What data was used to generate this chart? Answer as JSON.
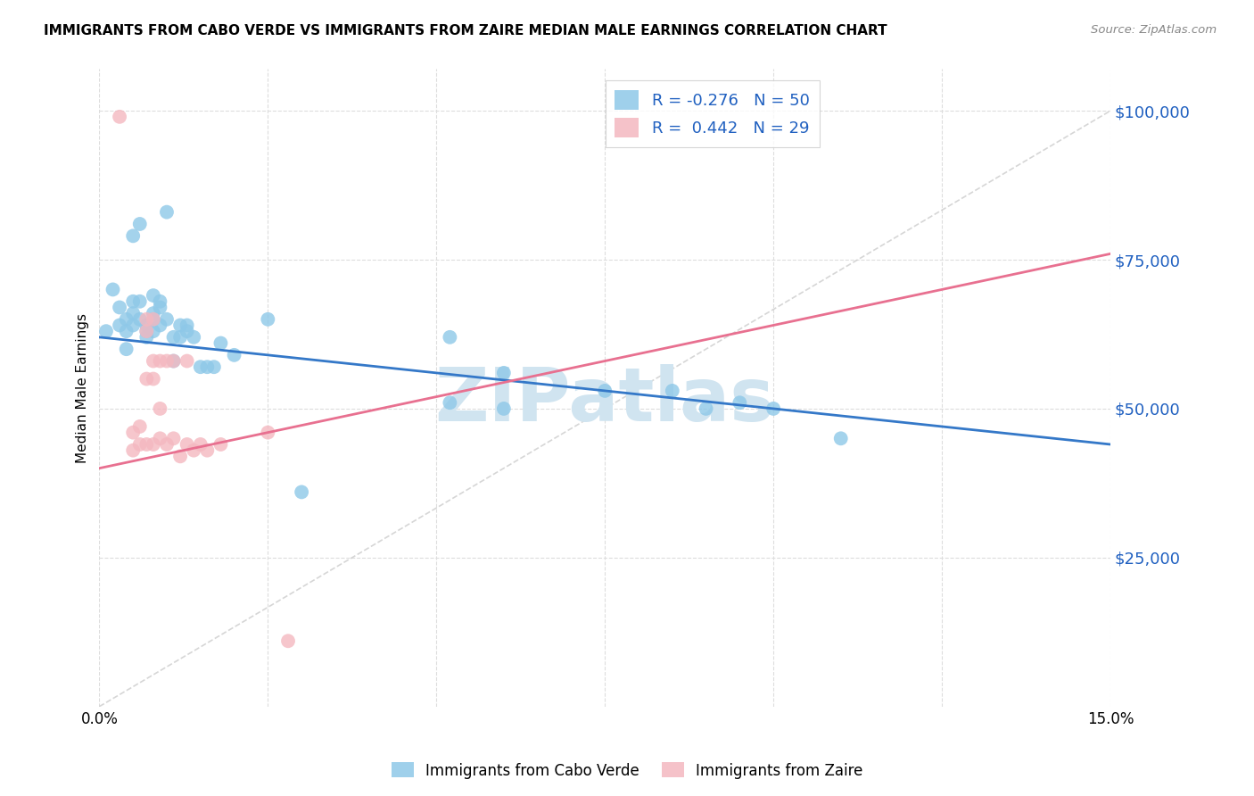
{
  "title": "IMMIGRANTS FROM CABO VERDE VS IMMIGRANTS FROM ZAIRE MEDIAN MALE EARNINGS CORRELATION CHART",
  "source": "Source: ZipAtlas.com",
  "ylabel": "Median Male Earnings",
  "y_ticks": [
    0,
    25000,
    50000,
    75000,
    100000
  ],
  "y_tick_labels": [
    "",
    "$25,000",
    "$50,000",
    "$75,000",
    "$100,000"
  ],
  "x_min": 0.0,
  "x_max": 0.15,
  "y_min": 0,
  "y_max": 107000,
  "cabo_verde_R": "-0.276",
  "cabo_verde_N": "50",
  "zaire_R": "0.442",
  "zaire_N": "29",
  "cabo_verde_color": "#8ec8e8",
  "zaire_color": "#f4b8c0",
  "cabo_verde_line_color": "#3478c8",
  "zaire_line_color": "#e87090",
  "diag_line_color": "#cccccc",
  "watermark_color": "#d0e4f0",
  "cabo_verde_points": [
    [
      0.001,
      63000
    ],
    [
      0.002,
      70000
    ],
    [
      0.003,
      67000
    ],
    [
      0.003,
      64000
    ],
    [
      0.004,
      65000
    ],
    [
      0.004,
      63000
    ],
    [
      0.004,
      60000
    ],
    [
      0.005,
      79000
    ],
    [
      0.005,
      68000
    ],
    [
      0.005,
      66000
    ],
    [
      0.005,
      64000
    ],
    [
      0.006,
      81000
    ],
    [
      0.006,
      68000
    ],
    [
      0.006,
      65000
    ],
    [
      0.007,
      64000
    ],
    [
      0.007,
      63000
    ],
    [
      0.007,
      62000
    ],
    [
      0.008,
      69000
    ],
    [
      0.008,
      66000
    ],
    [
      0.008,
      65000
    ],
    [
      0.008,
      63000
    ],
    [
      0.009,
      68000
    ],
    [
      0.009,
      67000
    ],
    [
      0.009,
      64000
    ],
    [
      0.01,
      83000
    ],
    [
      0.01,
      65000
    ],
    [
      0.011,
      62000
    ],
    [
      0.011,
      58000
    ],
    [
      0.012,
      64000
    ],
    [
      0.012,
      62000
    ],
    [
      0.013,
      64000
    ],
    [
      0.013,
      63000
    ],
    [
      0.014,
      62000
    ],
    [
      0.015,
      57000
    ],
    [
      0.016,
      57000
    ],
    [
      0.017,
      57000
    ],
    [
      0.018,
      61000
    ],
    [
      0.02,
      59000
    ],
    [
      0.025,
      65000
    ],
    [
      0.03,
      36000
    ],
    [
      0.052,
      62000
    ],
    [
      0.052,
      51000
    ],
    [
      0.06,
      56000
    ],
    [
      0.06,
      50000
    ],
    [
      0.075,
      53000
    ],
    [
      0.085,
      53000
    ],
    [
      0.09,
      50000
    ],
    [
      0.095,
      51000
    ],
    [
      0.1,
      50000
    ],
    [
      0.11,
      45000
    ]
  ],
  "zaire_points": [
    [
      0.003,
      99000
    ],
    [
      0.005,
      46000
    ],
    [
      0.005,
      43000
    ],
    [
      0.006,
      47000
    ],
    [
      0.006,
      44000
    ],
    [
      0.007,
      65000
    ],
    [
      0.007,
      63000
    ],
    [
      0.007,
      55000
    ],
    [
      0.007,
      44000
    ],
    [
      0.008,
      65000
    ],
    [
      0.008,
      58000
    ],
    [
      0.008,
      55000
    ],
    [
      0.008,
      44000
    ],
    [
      0.009,
      58000
    ],
    [
      0.009,
      50000
    ],
    [
      0.009,
      45000
    ],
    [
      0.01,
      58000
    ],
    [
      0.01,
      44000
    ],
    [
      0.011,
      58000
    ],
    [
      0.011,
      45000
    ],
    [
      0.012,
      42000
    ],
    [
      0.013,
      58000
    ],
    [
      0.013,
      44000
    ],
    [
      0.014,
      43000
    ],
    [
      0.015,
      44000
    ],
    [
      0.016,
      43000
    ],
    [
      0.018,
      44000
    ],
    [
      0.025,
      46000
    ],
    [
      0.028,
      11000
    ]
  ],
  "x_tick_positions": [
    0.0,
    0.025,
    0.05,
    0.075,
    0.1,
    0.125,
    0.15
  ]
}
